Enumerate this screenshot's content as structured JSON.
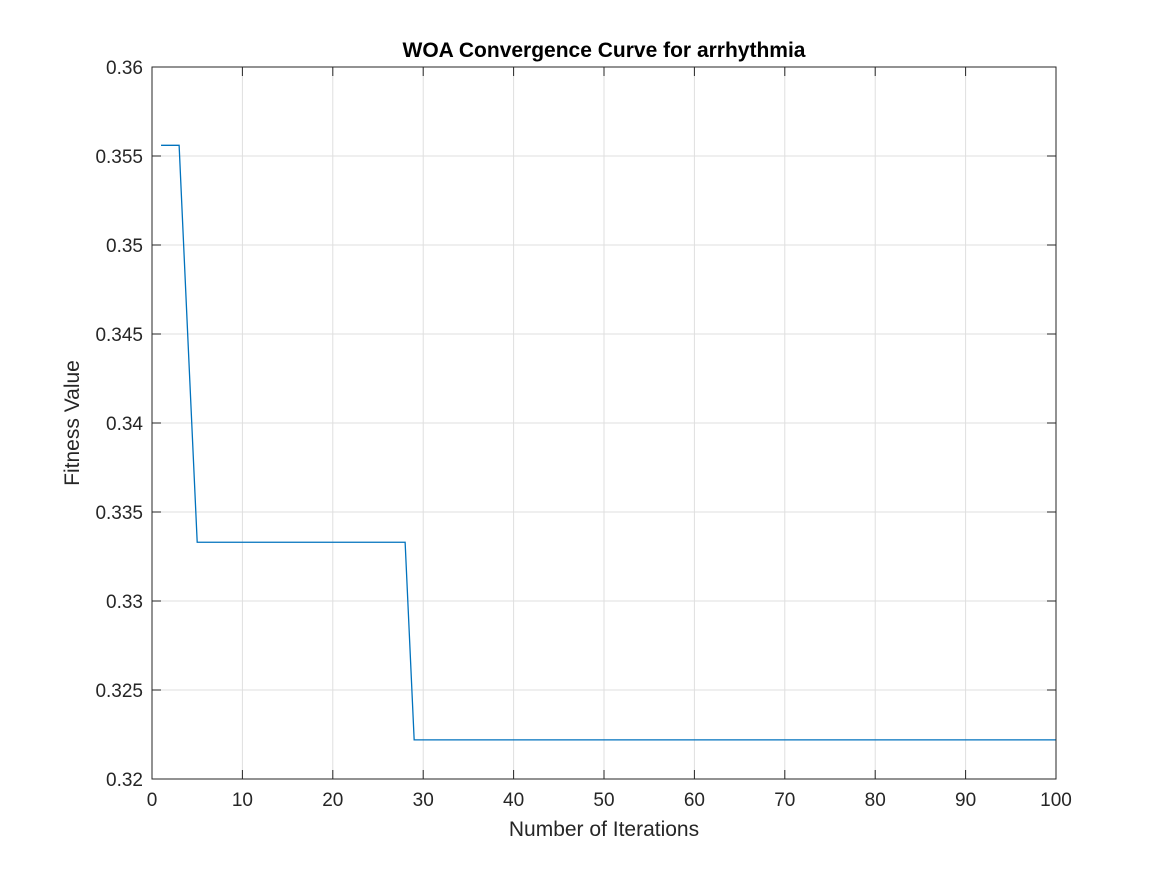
{
  "chart_data": {
    "type": "line",
    "title": "WOA Convergence Curve for arrhythmia",
    "xlabel": "Number of Iterations",
    "ylabel": "Fitness Value",
    "xlim": [
      0,
      100
    ],
    "ylim": [
      0.32,
      0.36
    ],
    "xticks": [
      0,
      10,
      20,
      30,
      40,
      50,
      60,
      70,
      80,
      90,
      100
    ],
    "xtick_labels": [
      "0",
      "10",
      "20",
      "30",
      "40",
      "50",
      "60",
      "70",
      "80",
      "90",
      "100"
    ],
    "yticks": [
      0.32,
      0.325,
      0.33,
      0.335,
      0.34,
      0.345,
      0.35,
      0.355,
      0.36
    ],
    "ytick_labels": [
      "0.32",
      "0.325",
      "0.33",
      "0.335",
      "0.34",
      "0.345",
      "0.35",
      "0.355",
      "0.36"
    ],
    "grid": true,
    "box": true,
    "series": [
      {
        "color": "#0072BD",
        "x": [
          1,
          2,
          3,
          4,
          5,
          6,
          7,
          8,
          9,
          10,
          11,
          12,
          13,
          14,
          15,
          16,
          17,
          18,
          19,
          20,
          21,
          22,
          23,
          24,
          25,
          26,
          27,
          28,
          29,
          30,
          31,
          32,
          33,
          34,
          35,
          36,
          37,
          38,
          39,
          40,
          41,
          42,
          43,
          44,
          45,
          46,
          47,
          48,
          49,
          50,
          51,
          52,
          53,
          54,
          55,
          56,
          57,
          58,
          59,
          60,
          61,
          62,
          63,
          64,
          65,
          66,
          67,
          68,
          69,
          70,
          71,
          72,
          73,
          74,
          75,
          76,
          77,
          78,
          79,
          80,
          81,
          82,
          83,
          84,
          85,
          86,
          87,
          88,
          89,
          90,
          91,
          92,
          93,
          94,
          95,
          96,
          97,
          98,
          99,
          100
        ],
        "y": [
          0.3556,
          0.3556,
          0.3556,
          0.3444,
          0.3333,
          0.3333,
          0.3333,
          0.3333,
          0.3333,
          0.3333,
          0.3333,
          0.3333,
          0.3333,
          0.3333,
          0.3333,
          0.3333,
          0.3333,
          0.3333,
          0.3333,
          0.3333,
          0.3333,
          0.3333,
          0.3333,
          0.3333,
          0.3333,
          0.3333,
          0.3333,
          0.3333,
          0.3222,
          0.3222,
          0.3222,
          0.3222,
          0.3222,
          0.3222,
          0.3222,
          0.3222,
          0.3222,
          0.3222,
          0.3222,
          0.3222,
          0.3222,
          0.3222,
          0.3222,
          0.3222,
          0.3222,
          0.3222,
          0.3222,
          0.3222,
          0.3222,
          0.3222,
          0.3222,
          0.3222,
          0.3222,
          0.3222,
          0.3222,
          0.3222,
          0.3222,
          0.3222,
          0.3222,
          0.3222,
          0.3222,
          0.3222,
          0.3222,
          0.3222,
          0.3222,
          0.3222,
          0.3222,
          0.3222,
          0.3222,
          0.3222,
          0.3222,
          0.3222,
          0.3222,
          0.3222,
          0.3222,
          0.3222,
          0.3222,
          0.3222,
          0.3222,
          0.3222,
          0.3222,
          0.3222,
          0.3222,
          0.3222,
          0.3222,
          0.3222,
          0.3222,
          0.3222,
          0.3222,
          0.3222,
          0.3222,
          0.3222,
          0.3222,
          0.3222,
          0.3222,
          0.3222,
          0.3222,
          0.3222,
          0.3222,
          0.3222
        ]
      }
    ]
  }
}
